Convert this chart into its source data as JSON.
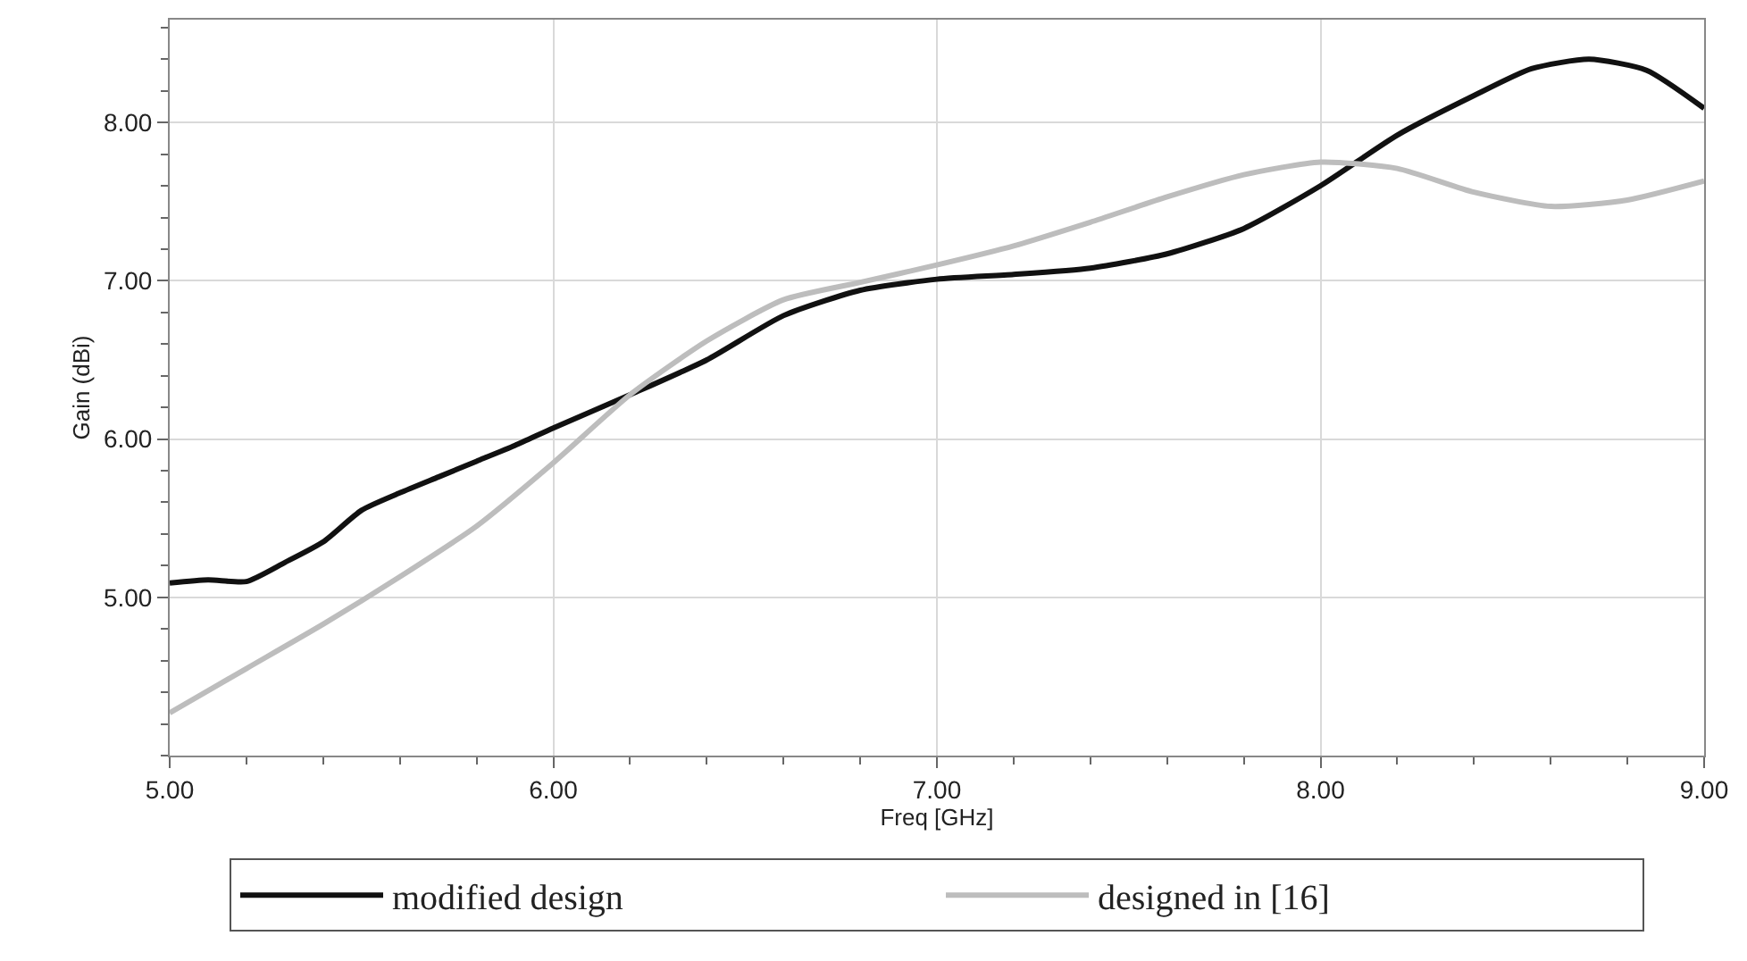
{
  "chart_data": {
    "type": "line",
    "xlabel": "Freq [GHz]",
    "ylabel": "Gain (dBi)",
    "xlim": [
      5.0,
      9.0
    ],
    "ylim": [
      4.0,
      8.65
    ],
    "xticks": [
      {
        "value": 5,
        "label": "5.00"
      },
      {
        "value": 6,
        "label": "6.00"
      },
      {
        "value": 7,
        "label": "7.00"
      },
      {
        "value": 8,
        "label": "8.00"
      },
      {
        "value": 9,
        "label": "9.00"
      }
    ],
    "yticks": [
      {
        "value": 5,
        "label": "5.00"
      },
      {
        "value": 6,
        "label": "6.00"
      },
      {
        "value": 7,
        "label": "7.00"
      },
      {
        "value": 8,
        "label": "8.00"
      }
    ],
    "grid": true,
    "legend": "bottom",
    "marker": "none",
    "line_style": "solid",
    "series": [
      {
        "name": "modified design",
        "color": "#111111",
        "x": [
          5.0,
          5.1,
          5.2,
          5.3,
          5.4,
          5.5,
          5.6,
          5.7,
          5.8,
          5.9,
          6.0,
          6.2,
          6.4,
          6.6,
          6.8,
          7.0,
          7.2,
          7.4,
          7.6,
          7.8,
          8.0,
          8.2,
          8.4,
          8.55,
          8.7,
          8.85,
          9.0
        ],
        "values": [
          5.09,
          5.11,
          5.1,
          5.22,
          5.35,
          5.55,
          5.66,
          5.76,
          5.86,
          5.96,
          6.07,
          6.28,
          6.5,
          6.78,
          6.94,
          7.01,
          7.04,
          7.08,
          7.17,
          7.33,
          7.6,
          7.92,
          8.17,
          8.34,
          8.4,
          8.33,
          8.09
        ]
      },
      {
        "name": "designed in [16]",
        "color": "#bdbdbd",
        "x": [
          5.0,
          5.2,
          5.4,
          5.6,
          5.8,
          6.0,
          6.2,
          6.4,
          6.6,
          6.8,
          7.0,
          7.2,
          7.4,
          7.6,
          7.8,
          8.0,
          8.2,
          8.4,
          8.6,
          8.8,
          9.0
        ],
        "values": [
          4.27,
          4.55,
          4.83,
          5.13,
          5.45,
          5.85,
          6.28,
          6.62,
          6.88,
          6.99,
          7.1,
          7.22,
          7.37,
          7.53,
          7.67,
          7.75,
          7.71,
          7.56,
          7.47,
          7.51,
          7.63
        ]
      }
    ]
  }
}
